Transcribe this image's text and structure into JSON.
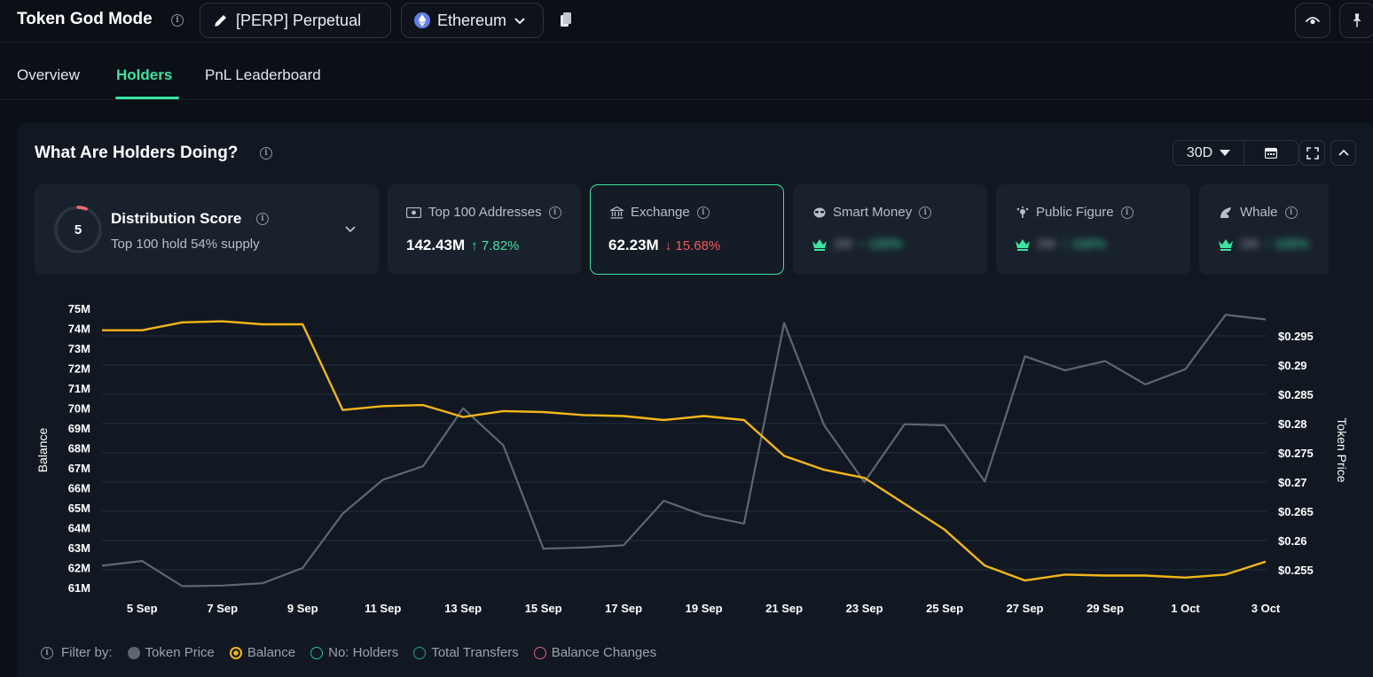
{
  "header": {
    "app_title": "Token God Mode",
    "token_label": "[PERP] Perpetual",
    "chain_label": "Ethereum"
  },
  "tabs": [
    {
      "label": "Overview"
    },
    {
      "label": "Holders"
    },
    {
      "label": "PnL Leaderboard"
    }
  ],
  "panel": {
    "title": "What Are Holders Doing?",
    "period": "30D"
  },
  "cards": {
    "distribution": {
      "score": "5",
      "title": "Distribution Score",
      "subtitle": "Top 100 hold 54% supply"
    },
    "top100": {
      "label": "Top 100 Addresses",
      "value": "142.43M",
      "change": "↑ 7.82%"
    },
    "exchange": {
      "label": "Exchange",
      "value": "62.23M",
      "change": "↓ 15.68%"
    },
    "smart_money": {
      "label": "Smart Money",
      "value": "2M",
      "change": "↑ 100%"
    },
    "public_figure": {
      "label": "Public Figure",
      "value": "2M",
      "change": "↑ 100%"
    },
    "whale": {
      "label": "Whale",
      "value": "2M",
      "change": "↑ 100%"
    }
  },
  "filter": {
    "label": "Filter by:",
    "items": [
      {
        "name": "Token Price",
        "color": "#5d6774"
      },
      {
        "name": "Balance",
        "color": "#f4b619"
      },
      {
        "name": "No: Holders",
        "color": "#1ec1a9"
      },
      {
        "name": "Total Transfers",
        "color": "#17a58a"
      },
      {
        "name": "Balance Changes",
        "color": "#e0607e"
      }
    ]
  },
  "chart_data": {
    "type": "line",
    "x": [
      "4 Sep",
      "5 Sep",
      "6 Sep",
      "7 Sep",
      "8 Sep",
      "9 Sep",
      "10 Sep",
      "11 Sep",
      "12 Sep",
      "13 Sep",
      "14 Sep",
      "15 Sep",
      "16 Sep",
      "17 Sep",
      "18 Sep",
      "19 Sep",
      "20 Sep",
      "21 Sep",
      "22 Sep",
      "23 Sep",
      "24 Sep",
      "25 Sep",
      "26 Sep",
      "27 Sep",
      "28 Sep",
      "29 Sep",
      "30 Sep",
      "1 Oct",
      "2 Oct",
      "3 Oct"
    ],
    "x_tick_labels": [
      "5 Sep",
      "7 Sep",
      "9 Sep",
      "11 Sep",
      "13 Sep",
      "15 Sep",
      "17 Sep",
      "19 Sep",
      "21 Sep",
      "23 Sep",
      "25 Sep",
      "27 Sep",
      "29 Sep",
      "1 Oct",
      "3 Oct"
    ],
    "ylabel": "Balance",
    "y2label": "Token Price",
    "ylim": [
      61,
      75
    ],
    "y2lim": [
      0.2545,
      0.2975
    ],
    "y_ticks": [
      "75M",
      "74M",
      "73M",
      "72M",
      "71M",
      "70M",
      "69M",
      "68M",
      "67M",
      "66M",
      "65M",
      "64M",
      "63M",
      "62M",
      "61M"
    ],
    "y2_ticks": [
      "$0.295",
      "$0.29",
      "$0.285",
      "$0.28",
      "$0.275",
      "$0.27",
      "$0.265",
      "$0.26",
      "$0.255"
    ],
    "series": [
      {
        "name": "Balance",
        "axis": "left",
        "color": "#f4b619",
        "values": [
          73.9,
          73.9,
          74.3,
          74.35,
          74.2,
          74.2,
          69.9,
          70.1,
          70.15,
          69.55,
          69.85,
          69.8,
          69.65,
          69.6,
          69.4,
          69.6,
          69.4,
          67.6,
          66.9,
          66.5,
          65.2,
          63.9,
          62.1,
          61.35,
          61.65,
          61.6,
          61.6,
          61.5,
          61.65,
          62.3
        ]
      },
      {
        "name": "Token Price",
        "axis": "right",
        "color": "#5d6774",
        "values": [
          0.2557,
          0.2565,
          0.2522,
          0.2523,
          0.2527,
          0.2553,
          0.2646,
          0.2704,
          0.2727,
          0.2826,
          0.2763,
          0.2586,
          0.2588,
          0.2592,
          0.2668,
          0.2643,
          0.2629,
          0.2972,
          0.2797,
          0.27,
          0.2799,
          0.2797,
          0.2701,
          0.2915,
          0.2891,
          0.2907,
          0.2867,
          0.2893,
          0.2986,
          0.2978
        ]
      }
    ]
  }
}
